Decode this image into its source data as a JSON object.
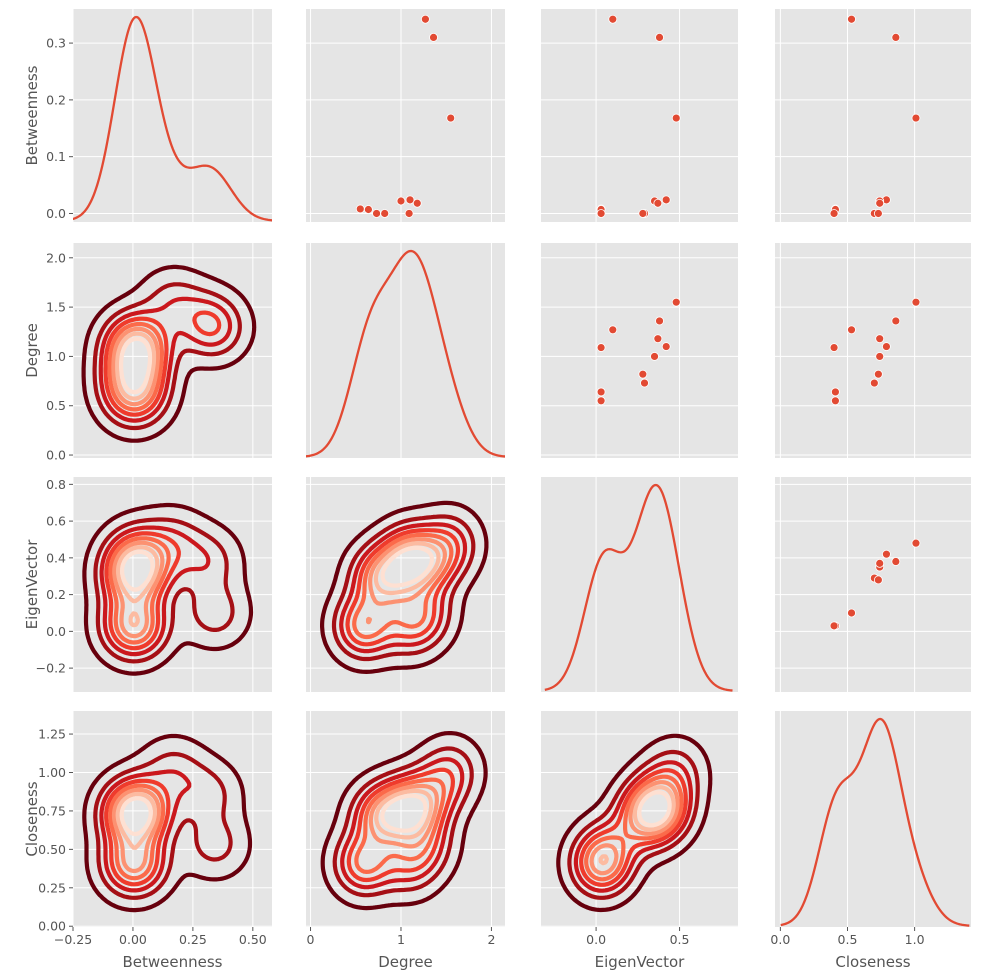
{
  "chart_data": {
    "type": "pairplot",
    "variables": [
      "Betweenness",
      "Degree",
      "EigenVector",
      "Closeness"
    ],
    "axis_labels": {
      "x": [
        "Betweenness",
        "Degree",
        "EigenVector",
        "Closeness"
      ],
      "y": [
        "Betweenness",
        "Degree",
        "EigenVector",
        "Closeness"
      ]
    },
    "axes": {
      "Betweenness": {
        "range": [
          -0.25,
          0.58
        ],
        "ticks": [
          -0.25,
          0.0,
          0.25,
          0.5
        ],
        "tick_labels": [
          "−0.25",
          "0.00",
          "0.25",
          "0.50"
        ],
        "y_range": [
          -0.015,
          0.36
        ],
        "y_ticks": [
          0.0,
          0.1,
          0.2,
          0.3
        ],
        "y_tick_labels": [
          "0.0",
          "0.1",
          "0.2",
          "0.3"
        ]
      },
      "Degree": {
        "range": [
          -0.05,
          2.15
        ],
        "ticks": [
          0,
          1,
          2
        ],
        "tick_labels": [
          "0",
          "1",
          "2"
        ],
        "y_range": [
          -0.03,
          2.15
        ],
        "y_ticks": [
          0.0,
          0.5,
          1.0,
          1.5,
          2.0
        ],
        "y_tick_labels": [
          "0.0",
          "0.5",
          "1.0",
          "1.5",
          "2.0"
        ]
      },
      "EigenVector": {
        "range": [
          -0.33,
          0.85
        ],
        "ticks": [
          0.0,
          0.5
        ],
        "tick_labels": [
          "0.0",
          "0.5"
        ],
        "y_range": [
          -0.33,
          0.84
        ],
        "y_ticks": [
          -0.2,
          0.0,
          0.2,
          0.4,
          0.6,
          0.8
        ],
        "y_tick_labels": [
          "−0.2",
          "0.0",
          "0.2",
          "0.4",
          "0.6",
          "0.8"
        ]
      },
      "Closeness": {
        "range": [
          -0.04,
          1.42
        ],
        "ticks": [
          0.0,
          0.5,
          1.0
        ],
        "tick_labels": [
          "0.0",
          "0.5",
          "1.0"
        ],
        "y_range": [
          -0.005,
          1.4
        ],
        "y_ticks": [
          0.0,
          0.25,
          0.5,
          0.75,
          1.0,
          1.25
        ],
        "y_tick_labels": [
          "0.00",
          "0.25",
          "0.50",
          "0.75",
          "1.00",
          "1.25"
        ]
      }
    },
    "nodes": [
      {
        "Betweenness": 0.342,
        "Degree": 1.27,
        "EigenVector": 0.1,
        "Closeness": 0.53
      },
      {
        "Betweenness": 0.31,
        "Degree": 1.36,
        "EigenVector": 0.38,
        "Closeness": 0.86
      },
      {
        "Betweenness": 0.168,
        "Degree": 1.55,
        "EigenVector": 0.48,
        "Closeness": 1.01
      },
      {
        "Betweenness": 0.024,
        "Degree": 1.1,
        "EigenVector": 0.42,
        "Closeness": 0.79
      },
      {
        "Betweenness": 0.022,
        "Degree": 1.0,
        "EigenVector": 0.35,
        "Closeness": 0.74
      },
      {
        "Betweenness": 0.018,
        "Degree": 1.18,
        "EigenVector": 0.37,
        "Closeness": 0.74
      },
      {
        "Betweenness": 0.008,
        "Degree": 0.55,
        "EigenVector": 0.03,
        "Closeness": 0.41
      },
      {
        "Betweenness": 0.007,
        "Degree": 0.64,
        "EigenVector": 0.03,
        "Closeness": 0.41
      },
      {
        "Betweenness": 0.0,
        "Degree": 1.09,
        "EigenVector": 0.03,
        "Closeness": 0.4
      },
      {
        "Betweenness": 0.0,
        "Degree": 0.73,
        "EigenVector": 0.29,
        "Closeness": 0.7
      },
      {
        "Betweenness": 0.0,
        "Degree": 0.82,
        "EigenVector": 0.28,
        "Closeness": 0.73
      }
    ],
    "diagonal": "kde",
    "upper": "scatter",
    "lower": "kde-contour",
    "colors": {
      "line": "#e24a33",
      "point": "#e24a33",
      "panel_bg": "#e5e5e5",
      "grid": "#ffffff",
      "contour_palette": [
        "#67000d",
        "#a50f15",
        "#cb181d",
        "#ef3b2c",
        "#fb6a4a",
        "#fc9272",
        "#fcbba1",
        "#fee0d2"
      ]
    },
    "grid": true,
    "style": "ggplot"
  }
}
